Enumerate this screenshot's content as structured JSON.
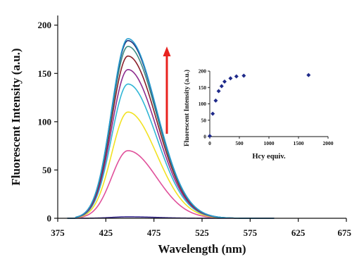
{
  "colors": {
    "background": "#ffffff",
    "axis": "#111111",
    "arrow": "#e8231f",
    "inset_marker": "#1f2a8a"
  },
  "chart_data": [
    {
      "type": "line",
      "xlabel": "Wavelength (nm)",
      "ylabel": "Fluorescent Intensity (a.u.)",
      "xlim": [
        375,
        675
      ],
      "ylim": [
        0,
        210
      ],
      "x_ticks": [
        375,
        425,
        475,
        525,
        575,
        625,
        675
      ],
      "y_ticks": [
        0,
        50,
        100,
        150,
        200
      ],
      "grid": false,
      "annotation": "red upward arrow indicating increasing intensity with added Hcy",
      "curve_shape": {
        "peak_wavelength": 448,
        "onset_wavelength": 393,
        "end_wavelength": 600
      },
      "series": [
        {
          "peak": 1.5,
          "color": "#3a2c8f"
        },
        {
          "peak": 70,
          "color": "#e0509a"
        },
        {
          "peak": 110,
          "color": "#f2e222"
        },
        {
          "peak": 139,
          "color": "#31b6d6"
        },
        {
          "peak": 154,
          "color": "#8e2c8f"
        },
        {
          "peak": 168,
          "color": "#8a1f28"
        },
        {
          "peak": 178,
          "color": "#3d8a80"
        },
        {
          "peak": 184,
          "color": "#1c2f7a"
        },
        {
          "peak": 186,
          "color": "#2a9ed0"
        }
      ]
    },
    {
      "type": "scatter",
      "inset": true,
      "xlabel": "Hcy equiv.",
      "ylabel": "Fluorescent Intensity (a.u.)",
      "xlim": [
        0,
        2000
      ],
      "ylim": [
        0,
        200
      ],
      "x_ticks": [
        0,
        500,
        1000,
        1500,
        2000
      ],
      "y_ticks": [
        0,
        50,
        100,
        150,
        200
      ],
      "grid": false,
      "marker": "diamond",
      "x": [
        0,
        50,
        100,
        150,
        200,
        250,
        350,
        450,
        575,
        1670
      ],
      "y": [
        2,
        70,
        110,
        139,
        154,
        168,
        178,
        184,
        186,
        188
      ]
    }
  ]
}
